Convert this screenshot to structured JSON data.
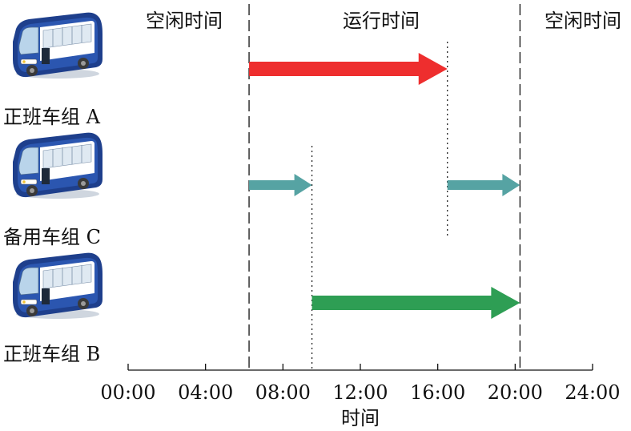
{
  "labels": {
    "idle_left": "空闲时间",
    "running": "运行时间",
    "idle_right": "空闲时间",
    "axis_title": "时间"
  },
  "groups": [
    {
      "name": "正班车组 A"
    },
    {
      "name": "备用车组 C"
    },
    {
      "name": "正班车组 B"
    }
  ],
  "axis": {
    "min_hours": 0,
    "max_hours": 24,
    "ticks": [
      "00:00",
      "04:00",
      "08:00",
      "12:00",
      "16:00",
      "20:00",
      "24:00"
    ]
  },
  "boundaries_hours": {
    "run_start": 6.25,
    "run_end": 20.25,
    "c_end": 9.5,
    "a_end": 16.5
  },
  "segments": [
    {
      "group": 0,
      "start": 6.25,
      "end": 16.5,
      "color": "#ee2e2e",
      "style": "thick"
    },
    {
      "group": 1,
      "start": 6.25,
      "end": 9.5,
      "color": "#56a3a3",
      "style": "thin"
    },
    {
      "group": 1,
      "start": 16.5,
      "end": 20.25,
      "color": "#56a3a3",
      "style": "thin"
    },
    {
      "group": 2,
      "start": 9.5,
      "end": 20.25,
      "color": "#2e9e54",
      "style": "thick"
    }
  ],
  "colors": {
    "bus_body": "#2a4a96",
    "bus_window": "#dfe9f2",
    "line": "#111111"
  }
}
